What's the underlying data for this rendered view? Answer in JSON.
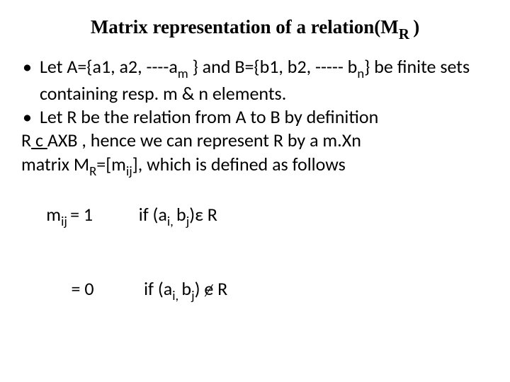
{
  "title_fontsize": 27,
  "content_fontsize": 26,
  "title_font": "Times New Roman",
  "content_font": "Calibri",
  "text_color": "#000000",
  "background_color": "#ffffff",
  "title": {
    "part1": "Matrix representation of  a relation(M",
    "sub": "R ",
    "part2": ")"
  },
  "bullets": [
    {
      "seg1": "Let A={a1, a2, ----a",
      "sub1": "m",
      "seg2": " } and B={b1, b2, ----- b",
      "sub2": "n",
      "seg3": "} be finite sets containing resp. m & n elements."
    },
    {
      "seg1": "Let R be the relation from A to B by definition"
    }
  ],
  "line1": {
    "seg1": "R",
    "seg_u": " c ",
    "seg2": "AXB , hence we can represent R by a m.Xn"
  },
  "line2": {
    "seg1": "matrix M",
    "sub1": "R",
    "seg2": "=[m",
    "sub2": "ij",
    "seg3": "], which is defined as follows"
  },
  "line3": {
    "seg1": "m",
    "sub1": "ij ",
    "seg2": "= 1           if (a",
    "sub2": "i, ",
    "seg3": "b",
    "sub3": "j",
    "seg4": ")ε R"
  },
  "line4": {
    "seg1": "      = 0            if (a",
    "sub1": "i, ",
    "seg2": "b",
    "sub2": "j",
    "seg3": ") ɇ R"
  }
}
